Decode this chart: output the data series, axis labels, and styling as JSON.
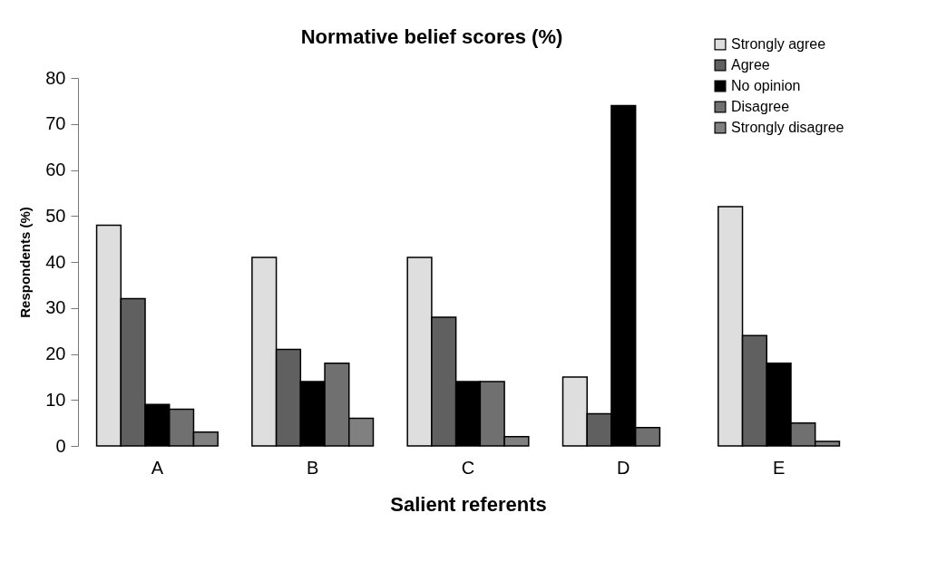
{
  "chart_data": {
    "type": "bar",
    "title": "Normative belief scores (%)",
    "xlabel": "Salient referents",
    "ylabel": "Respondents (%)",
    "categories": [
      "A",
      "B",
      "C",
      "D",
      "E"
    ],
    "series": [
      {
        "name": "Strongly agree",
        "color": "#dedede",
        "values": [
          48,
          41,
          41,
          15,
          52
        ]
      },
      {
        "name": "Agree",
        "color": "#606060",
        "values": [
          32,
          21,
          28,
          7,
          24
        ]
      },
      {
        "name": "No opinion",
        "color": "#000000",
        "values": [
          9,
          14,
          14,
          74,
          18
        ]
      },
      {
        "name": "Disagree",
        "color": "#707070",
        "values": [
          8,
          18,
          14,
          4,
          5
        ]
      },
      {
        "name": "Strongly disagree",
        "color": "#808080",
        "values": [
          3,
          6,
          2,
          null,
          1
        ]
      }
    ],
    "ylim": [
      0,
      80
    ],
    "yticks": [
      0,
      10,
      20,
      30,
      40,
      50,
      60,
      70,
      80
    ],
    "grid": false,
    "legend": "top right"
  }
}
